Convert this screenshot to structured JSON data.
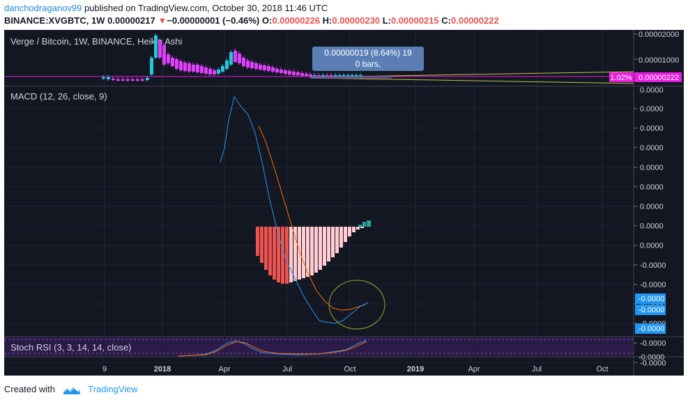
{
  "header": {
    "user": "danchodraganov99",
    "published": "published on TradingView.com, October 30, 2018 11:46 UTC",
    "symbol": "BINANCE:XVGBTC, 1W",
    "price": "0.00000217",
    "change_arrow": "▼",
    "change": "−0.00000001 (−0.46%)",
    "o_label": "O:",
    "o_value": "0.00000226",
    "h_label": "H:",
    "h_value": "0.00000230",
    "l_label": "L:",
    "l_value": "0.00000215",
    "c_label": "C:",
    "c_value": "0.00000222"
  },
  "footer": {
    "created": "Created with",
    "brand": "TradingView"
  },
  "panes": {
    "main_title": "Verge / Bitcoin, 1W, BINANCE, Heikin Ashi",
    "macd_title": "MACD (12, 26, close, 9)",
    "stoch_title": "Stoch RSI (3, 3, 14, 14, close)"
  },
  "measure_tooltip": {
    "line1": "0.00000019 (8.64%) 19",
    "line2": "0 bars,"
  },
  "price_badge": {
    "percent": "1.02%",
    "value": "0.00000222"
  },
  "colors": {
    "bg": "#131722",
    "grid": "#1f2433",
    "up": "#26c6da",
    "down": "#e040fb",
    "macd": "#2196f3",
    "signal": "#ff6d00",
    "hist_neg_strong": "#ef5350",
    "hist_neg_weak": "#ffcdd2",
    "hist_pos": "#26a69a",
    "stoch_bg": "#2b1a4a",
    "tooltip": "#5b7fb5",
    "badge": "#e91ee0",
    "annotation": "#8d8d2a"
  },
  "chart_data": [
    {
      "type": "candlestick",
      "title": "Verge / Bitcoin, 1W, BINANCE, Heikin Ashi",
      "y_ticks": [
        "0.00002000",
        "0.00001000",
        "0.00000222",
        "0.0000"
      ],
      "x_ticks": [
        "9",
        "2018",
        "Apr",
        "Jul",
        "Oct",
        "2019",
        "Apr",
        "Jul",
        "Oct"
      ],
      "last_value": "0.00000222"
    },
    {
      "type": "line",
      "title": "MACD (12, 26, close, 9)",
      "y_ticks": [
        "0.0000",
        "0.0000",
        "0.0000",
        "0.0000",
        "0.0000",
        "0.0000",
        "0.0000",
        "0.0000",
        "-0.0000",
        "-0.0000",
        "-0.0000",
        "-0.0000",
        "-0.0000",
        "-0.0000"
      ],
      "highlight_ticks": [
        "-0.0000",
        "-0.0000",
        "-0.0000"
      ],
      "series": [
        {
          "name": "",
          "values": []
        },
        {
          "name": "",
          "values": []
        }
      ]
    },
    {
      "type": "line",
      "title": "Stoch RSI (3, 3, 14, 14, close)",
      "y_ticks": [
        "-0.0000"
      ]
    }
  ]
}
